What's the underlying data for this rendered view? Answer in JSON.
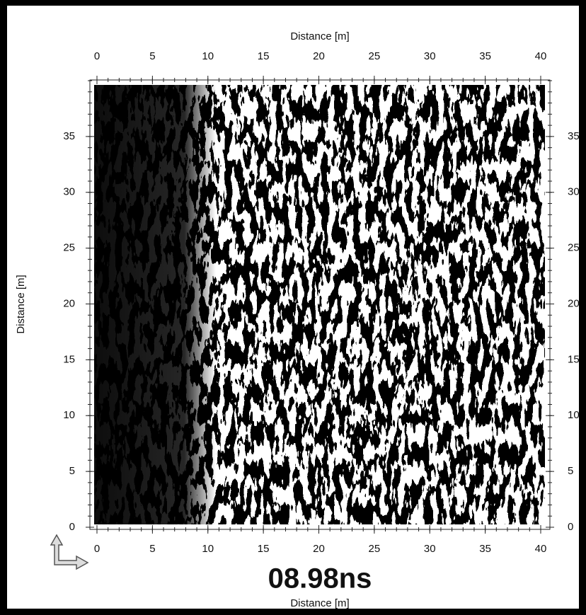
{
  "axes": {
    "top": {
      "label": "Distance [m]",
      "lim": [
        0,
        40
      ],
      "ticks": [
        0,
        5,
        10,
        15,
        20,
        25,
        30,
        35,
        40
      ]
    },
    "bottom": {
      "label": "Distance [m]",
      "lim": [
        0,
        40
      ],
      "ticks": [
        0,
        5,
        10,
        15,
        20,
        25,
        30,
        35,
        40
      ]
    },
    "left": {
      "label": "Distance [m]",
      "lim": [
        0,
        40
      ],
      "ticks": [
        0,
        5,
        10,
        15,
        20,
        25,
        30,
        35
      ]
    },
    "right": {
      "lim": [
        0,
        40
      ],
      "ticks": [
        0,
        5,
        10,
        15,
        20,
        25,
        30,
        35
      ]
    }
  },
  "time_label": "08.98ns"
}
